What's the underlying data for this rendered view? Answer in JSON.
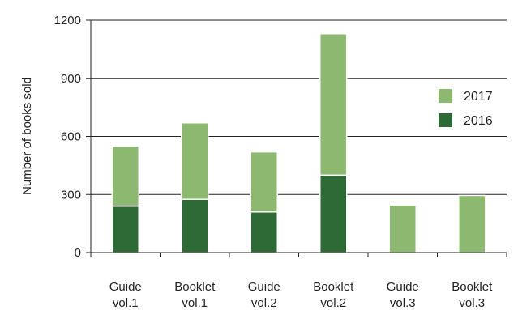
{
  "chart_data": {
    "type": "bar",
    "stacked": true,
    "categories": [
      [
        "Guide",
        "vol.1"
      ],
      [
        "Booklet",
        "vol.1"
      ],
      [
        "Guide",
        "vol.2"
      ],
      [
        "Booklet",
        "vol.2"
      ],
      [
        "Guide",
        "vol.3"
      ],
      [
        "Booklet",
        "vol.3"
      ]
    ],
    "series": [
      {
        "name": "2016",
        "color": "#2d6a35",
        "values": [
          240,
          275,
          210,
          400,
          0,
          0
        ]
      },
      {
        "name": "2017",
        "color": "#8db870",
        "values": [
          310,
          395,
          310,
          730,
          245,
          295
        ]
      }
    ],
    "ylabel": "Number of books sold",
    "ylim": [
      0,
      1200
    ],
    "yticks": [
      0,
      300,
      600,
      900,
      1200
    ],
    "grid": true,
    "legend": {
      "position": "right",
      "order": [
        "2017",
        "2016"
      ]
    }
  }
}
